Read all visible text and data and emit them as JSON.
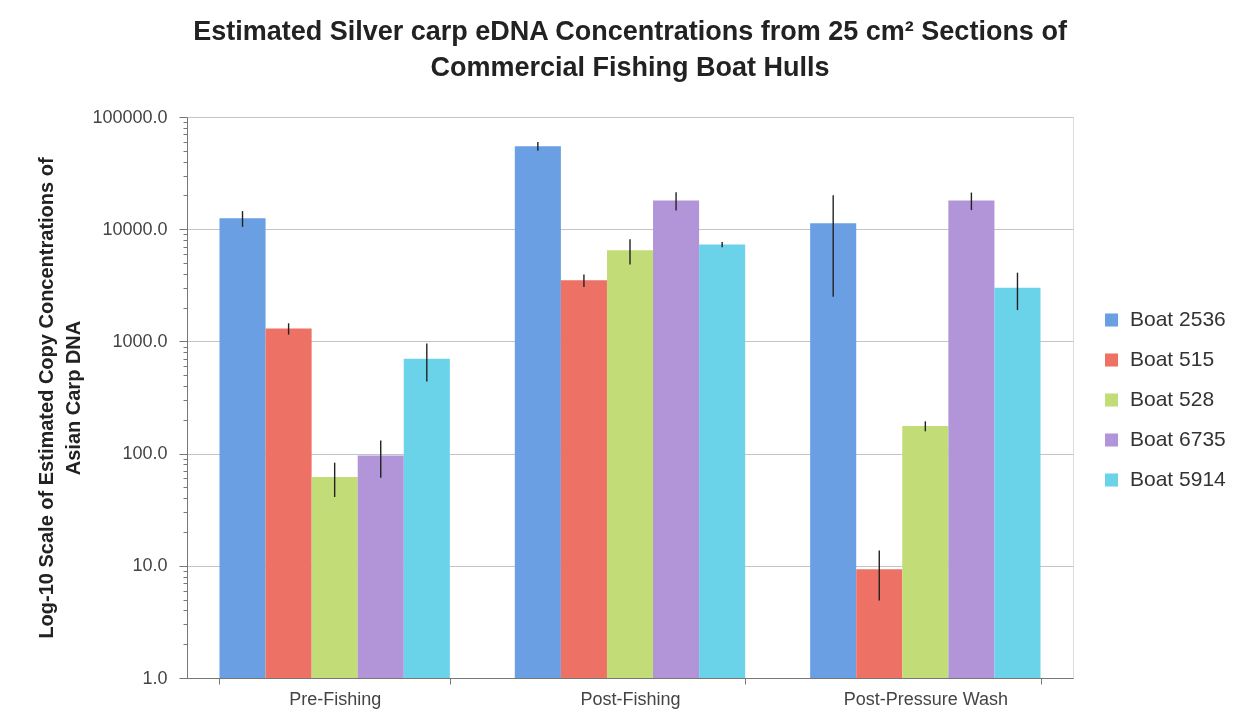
{
  "chart_data": {
    "type": "bar",
    "title": "Estimated Silver carp eDNA Concentrations from 25 cm² Sections of\nCommercial Fishing Boat Hulls",
    "ylabel": "Log-10 Scale of Estimated Copy Concentrations of\nAsian Carp DNA",
    "categories": [
      "Pre-Fishing",
      "Post-Fishing",
      "Post-Pressure Wash"
    ],
    "series": [
      {
        "name": "Boat 2536",
        "color": "#6a9fe3",
        "values": [
          12500,
          55000,
          11300
        ],
        "errors": [
          2000,
          5000,
          8800
        ]
      },
      {
        "name": "Boat 515",
        "color": "#ee7166",
        "values": [
          1300,
          3500,
          9.3
        ],
        "errors": [
          150,
          450,
          4.4
        ]
      },
      {
        "name": "Boat 528",
        "color": "#c2dc78",
        "values": [
          62,
          6500,
          176
        ],
        "errors": [
          21,
          1650,
          18
        ]
      },
      {
        "name": "Boat 6735",
        "color": "#b195d8",
        "values": [
          96,
          18000,
          18000
        ],
        "errors": [
          35,
          3300,
          3200
        ]
      },
      {
        "name": "Boat 5914",
        "color": "#6ad3ea",
        "values": [
          700,
          7300,
          3000
        ],
        "errors": [
          260,
          400,
          1100
        ]
      }
    ],
    "ylim": [
      1,
      100000
    ],
    "yticks": [
      {
        "value": 1,
        "label": "1.0"
      },
      {
        "value": 2,
        "label": null
      },
      {
        "value": 3,
        "label": null
      },
      {
        "value": 4,
        "label": null
      },
      {
        "value": 5,
        "label": null
      },
      {
        "value": 6,
        "label": null
      },
      {
        "value": 7,
        "label": null
      },
      {
        "value": 8,
        "label": null
      },
      {
        "value": 9,
        "label": null
      },
      {
        "value": 10,
        "label": "10.0"
      },
      {
        "value": 20,
        "label": null
      },
      {
        "value": 30,
        "label": null
      },
      {
        "value": 40,
        "label": null
      },
      {
        "value": 50,
        "label": null
      },
      {
        "value": 60,
        "label": null
      },
      {
        "value": 70,
        "label": null
      },
      {
        "value": 80,
        "label": null
      },
      {
        "value": 90,
        "label": null
      },
      {
        "value": 100,
        "label": "100.0"
      },
      {
        "value": 200,
        "label": null
      },
      {
        "value": 300,
        "label": null
      },
      {
        "value": 400,
        "label": null
      },
      {
        "value": 500,
        "label": null
      },
      {
        "value": 600,
        "label": null
      },
      {
        "value": 700,
        "label": null
      },
      {
        "value": 800,
        "label": null
      },
      {
        "value": 900,
        "label": null
      },
      {
        "value": 1000,
        "label": "1000.0"
      },
      {
        "value": 2000,
        "label": null
      },
      {
        "value": 3000,
        "label": null
      },
      {
        "value": 4000,
        "label": null
      },
      {
        "value": 5000,
        "label": null
      },
      {
        "value": 6000,
        "label": null
      },
      {
        "value": 7000,
        "label": null
      },
      {
        "value": 8000,
        "label": null
      },
      {
        "value": 9000,
        "label": null
      },
      {
        "value": 10000,
        "label": "10000.0"
      },
      {
        "value": 20000,
        "label": null
      },
      {
        "value": 30000,
        "label": null
      },
      {
        "value": 40000,
        "label": null
      },
      {
        "value": 50000,
        "label": null
      },
      {
        "value": 60000,
        "label": null
      },
      {
        "value": 70000,
        "label": null
      },
      {
        "value": 80000,
        "label": null
      },
      {
        "value": 90000,
        "label": null
      },
      {
        "value": 100000,
        "label": "100000.0"
      }
    ],
    "log": true,
    "grid": "y",
    "legend": "right"
  }
}
